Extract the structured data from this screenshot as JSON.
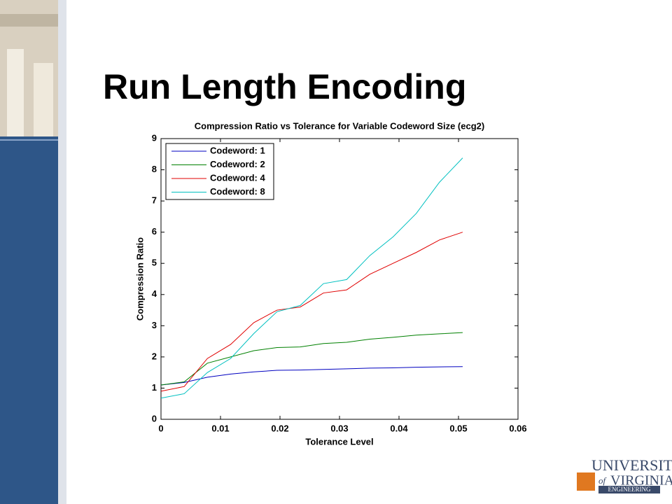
{
  "slide": {
    "title": "Run Length Encoding",
    "logo": {
      "line1": "UNIVERSITY",
      "of": "of",
      "line2": "VIRGINIA",
      "line3": "ENGINEERING"
    }
  },
  "chart_data": {
    "type": "line",
    "title": "Compression Ratio vs Tolerance for Variable Codeword Size (ecg2)",
    "x_label": "Tolerance Level",
    "y_label": "Compression Ratio",
    "x": [
      0,
      0.0039,
      0.0078,
      0.0117,
      0.0156,
      0.0195,
      0.0234,
      0.0273,
      0.0312,
      0.0351,
      0.039,
      0.0429,
      0.0468,
      0.0507
    ],
    "series": [
      {
        "name": "Codeword: 1",
        "color": "#0000c0",
        "values": [
          1.1,
          1.18,
          1.35,
          1.45,
          1.52,
          1.57,
          1.58,
          1.6,
          1.62,
          1.64,
          1.65,
          1.67,
          1.68,
          1.69
        ]
      },
      {
        "name": "Codeword: 2",
        "color": "#008000",
        "values": [
          1.1,
          1.2,
          1.8,
          2.0,
          2.2,
          2.3,
          2.32,
          2.43,
          2.47,
          2.57,
          2.63,
          2.7,
          2.74,
          2.78
        ]
      },
      {
        "name": "Codeword: 4",
        "color": "#e00000",
        "values": [
          0.9,
          1.05,
          1.95,
          2.4,
          3.1,
          3.5,
          3.6,
          4.05,
          4.15,
          4.65,
          5.0,
          5.35,
          5.75,
          6.0
        ]
      },
      {
        "name": "Codeword: 8",
        "color": "#00c0c0",
        "values": [
          0.68,
          0.82,
          1.5,
          1.95,
          2.75,
          3.45,
          3.65,
          4.35,
          4.48,
          5.25,
          5.85,
          6.6,
          7.6,
          8.38
        ]
      }
    ],
    "xlim": [
      0,
      0.06
    ],
    "xticks": [
      0,
      0.01,
      0.02,
      0.03,
      0.04,
      0.05,
      0.06
    ],
    "ylim": [
      0,
      9
    ],
    "yticks": [
      0,
      1,
      2,
      3,
      4,
      5,
      6,
      7,
      8,
      9
    ],
    "grid": false,
    "legend": "upper left"
  }
}
